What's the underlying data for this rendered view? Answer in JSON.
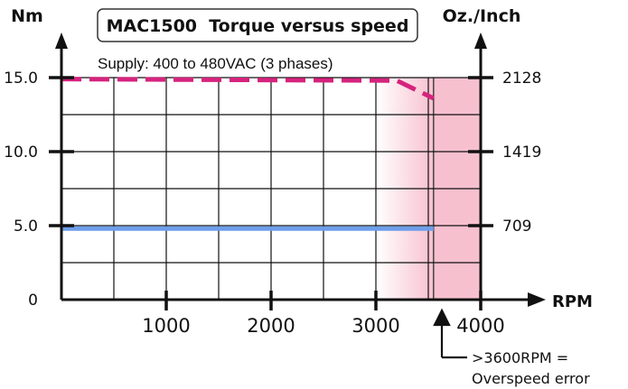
{
  "chart_data": {
    "type": "line",
    "title": "MAC1500  Torque versus speed",
    "subtitle": "Supply: 400 to 480VAC (3 phases)",
    "xlabel": "RPM",
    "ylabel_left": "Nm",
    "ylabel_right": "Oz./Inch",
    "xlim": [
      0,
      4000
    ],
    "ylim": [
      0,
      15
    ],
    "x_ticks": [
      1000,
      2000,
      3000,
      4000
    ],
    "x_tick_labels": [
      "1000",
      "2000",
      "3000",
      "4000"
    ],
    "y_ticks": [
      0,
      5,
      10,
      15
    ],
    "y_tick_labels_left": [
      "0",
      "5.0",
      "10.0",
      "15.0"
    ],
    "y_ticks_right": [
      5,
      10,
      15
    ],
    "y_tick_labels_right": [
      "709",
      "1419",
      "2128"
    ],
    "grid": true,
    "series": [
      {
        "style": "dashed",
        "color": "#d6237e",
        "x": [
          0,
          3200,
          3550
        ],
        "y": [
          14.9,
          14.8,
          13.6
        ]
      },
      {
        "style": "solid",
        "color": "#6d9eea",
        "x": [
          0,
          3550
        ],
        "y": [
          4.8,
          4.8
        ]
      }
    ],
    "shaded_region": {
      "x_start": 3000,
      "x_solid_from": 3550,
      "x_end": 4000,
      "color": "#f7c0cf"
    },
    "annotation": {
      "x": 3600,
      "lines": [
        ">3600RPM =",
        "Overspeed error"
      ]
    }
  }
}
